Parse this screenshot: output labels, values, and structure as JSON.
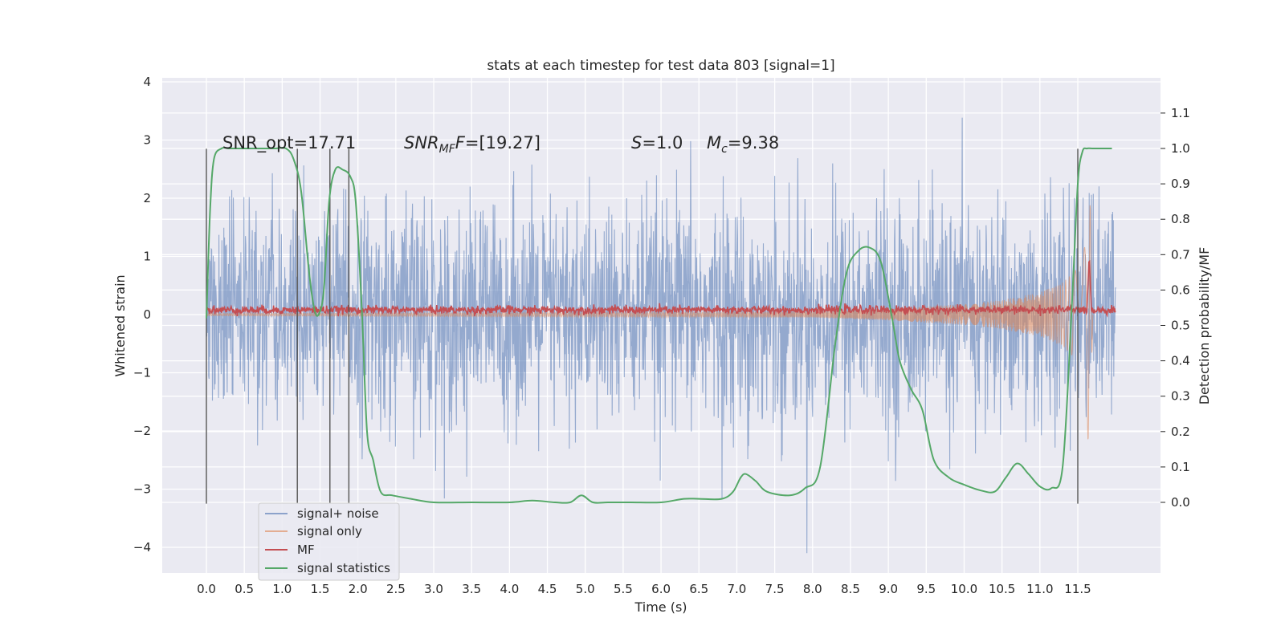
{
  "chart_data": {
    "type": "line",
    "title": "stats at each timestep for test data 803 [signal=1]",
    "xlabel": "Time (s)",
    "ylabel": "Whitened strain",
    "ylabel_right": "Detection probability/MF",
    "xlim": [
      -0.6,
      12.6
    ],
    "ylim": [
      -4.4,
      4.05
    ],
    "ylim_right": [
      -0.2,
      1.2
    ],
    "x_ticks": [
      0.0,
      0.5,
      1.0,
      1.5,
      2.0,
      2.5,
      3.0,
      3.5,
      4.0,
      4.5,
      5.0,
      5.5,
      6.0,
      6.5,
      7.0,
      7.5,
      8.0,
      8.5,
      9.0,
      9.5,
      10.0,
      10.5,
      11.0,
      11.5
    ],
    "x_tick_labels": [
      "0.0",
      "0.5",
      "1.0",
      "1.5",
      "2.0",
      "2.5",
      "3.0",
      "3.5",
      "4.0",
      "4.5",
      "5.0",
      "5.5",
      "6.0",
      "6.5",
      "7.0",
      "7.5",
      "8.0",
      "8.5",
      "9.0",
      "9.5",
      "10.0",
      "10.5",
      "11.0",
      "11.5"
    ],
    "y_ticks": [
      -4,
      -3,
      -2,
      -1,
      0,
      1,
      2,
      3,
      4
    ],
    "y_tick_labels": [
      "−4",
      "−3",
      "−2",
      "−1",
      "0",
      "1",
      "2",
      "3",
      "4"
    ],
    "y_right_ticks": [
      0.0,
      0.1,
      0.2,
      0.3,
      0.4,
      0.5,
      0.6,
      0.7,
      0.8,
      0.9,
      1.0,
      1.1
    ],
    "y_right_tick_labels": [
      "0.0",
      "0.1",
      "0.2",
      "0.3",
      "0.4",
      "0.5",
      "0.6",
      "0.7",
      "0.8",
      "0.9",
      "1.0",
      "1.1"
    ],
    "grid": true,
    "legend_position": "bottom-left",
    "annotations": {
      "snr_opt": "SNR_opt=17.71",
      "snr_mf_name": "SNR",
      "snr_mf_sub": "MF",
      "snr_mf_value": "=[19.27]",
      "s_name": "S",
      "s_value": "=1.0",
      "mc_name": "M",
      "mc_sub": "c",
      "mc_value": "=9.38"
    },
    "series": [
      {
        "name": "signal+ noise",
        "color": "#4c72b0",
        "t_range": [
          0.0,
          12.0
        ],
        "description_values": {
          "typical_abs_max": 2.3,
          "peak": 3.7,
          "trough": -4.1
        }
      },
      {
        "name": "signal only",
        "color": "#dd8452",
        "envelope": {
          "t": [
            0.0,
            8.0,
            9.0,
            10.0,
            10.5,
            11.0,
            11.3,
            11.5,
            11.6,
            11.65,
            11.7
          ],
          "amp": [
            0.02,
            0.05,
            0.1,
            0.18,
            0.25,
            0.38,
            0.55,
            0.8,
            1.2,
            2.6,
            0.0
          ]
        }
      },
      {
        "name": "MF",
        "color": "#c44e52",
        "baseline": 0.08,
        "peak_t": 11.65,
        "peak_value": 1.0
      },
      {
        "name": "signal statistics",
        "color": "#55a868",
        "t": [
          0.0,
          0.05,
          0.1,
          0.2,
          0.3,
          0.5,
          0.7,
          0.9,
          1.05,
          1.15,
          1.25,
          1.35,
          1.42,
          1.48,
          1.55,
          1.62,
          1.7,
          1.8,
          1.9,
          1.97,
          2.05,
          2.12,
          2.2,
          2.3,
          2.45,
          2.7,
          3.0,
          3.5,
          4.0,
          4.3,
          4.6,
          4.8,
          4.95,
          5.1,
          5.3,
          5.6,
          6.0,
          6.3,
          6.5,
          6.8,
          6.95,
          7.05,
          7.12,
          7.25,
          7.4,
          7.7,
          7.9,
          8.1,
          8.3,
          8.45,
          8.6,
          8.75,
          8.9,
          9.05,
          9.15,
          9.3,
          9.45,
          9.6,
          9.8,
          10.0,
          10.2,
          10.4,
          10.55,
          10.7,
          10.85,
          11.0,
          11.15,
          11.3,
          11.42,
          11.5,
          11.56,
          11.62,
          11.7,
          11.8,
          11.95
        ],
        "values": [
          0.52,
          0.83,
          0.97,
          1.0,
          1.0,
          1.0,
          1.0,
          1.0,
          1.0,
          0.97,
          0.88,
          0.66,
          0.55,
          0.53,
          0.6,
          0.85,
          0.94,
          0.94,
          0.92,
          0.85,
          0.55,
          0.2,
          0.12,
          0.03,
          0.02,
          0.01,
          0.0,
          0.0,
          0.0,
          0.005,
          0.0,
          0.0,
          0.02,
          0.0,
          0.0,
          0.0,
          0.0,
          0.01,
          0.01,
          0.01,
          0.03,
          0.07,
          0.08,
          0.06,
          0.03,
          0.02,
          0.04,
          0.1,
          0.45,
          0.65,
          0.71,
          0.72,
          0.68,
          0.52,
          0.4,
          0.32,
          0.26,
          0.12,
          0.07,
          0.05,
          0.035,
          0.03,
          0.07,
          0.11,
          0.08,
          0.045,
          0.04,
          0.1,
          0.55,
          0.9,
          0.99,
          1.0,
          1.0,
          1.0,
          1.0
        ]
      }
    ],
    "vertical_lines": {
      "color": "#555555",
      "lines": [
        {
          "t": 0.0,
          "y0": -3.25,
          "y1": 2.85
        },
        {
          "t": 1.2,
          "y0": -3.25,
          "y1": 2.85
        },
        {
          "t": 1.63,
          "y0": -3.25,
          "y1": 2.85
        },
        {
          "t": 1.88,
          "y0": -3.25,
          "y1": 2.85
        },
        {
          "t": 11.5,
          "y0": -3.25,
          "y1": 2.85
        }
      ]
    }
  }
}
